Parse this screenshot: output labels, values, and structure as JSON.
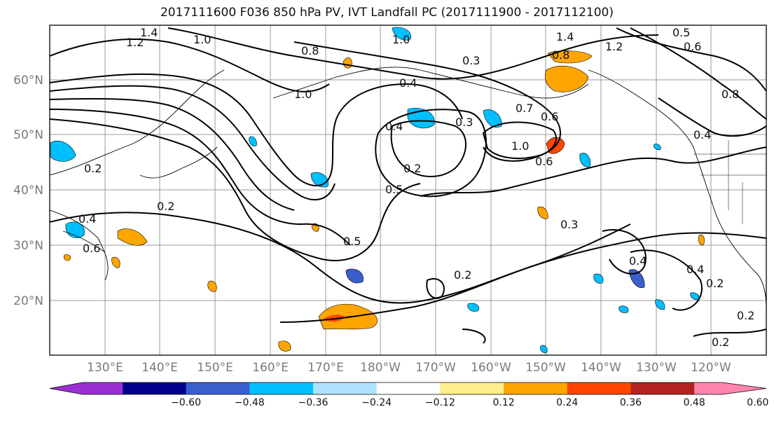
{
  "title": "2017111600 F036 850 hPa PV, IVT Landfall PC (2017111900 - 2017112100)",
  "latitudes": [
    "60°N",
    "50°N",
    "40°N",
    "30°N",
    "20°N"
  ],
  "longitudes": [
    "130°E",
    "140°E",
    "150°E",
    "160°E",
    "170°E",
    "180°W",
    "170°W",
    "160°W",
    "150°W",
    "140°W",
    "130°W",
    "120°W"
  ],
  "colorbar": {
    "ticks": [
      "−0.60",
      "−0.48",
      "−0.36",
      "−0.24",
      "−0.12",
      "0.12",
      "0.24",
      "0.36",
      "0.48",
      "0.60"
    ],
    "colors": [
      "#9b30d0",
      "#00008b",
      "#3a5fcd",
      "#00bfff",
      "#b0e2ff",
      "#ffffff",
      "#ffec8b",
      "#ffa500",
      "#ff4500",
      "#b22222",
      "#ff85b0"
    ]
  },
  "contour_labels": [
    "1.4",
    "1.2",
    "1.0",
    "0.8",
    "0.6",
    "0.5",
    "0.4",
    "0.3",
    "0.2",
    "0.7"
  ],
  "colors": {
    "grid": "#9a9a9a",
    "contour": "#000000",
    "axis_label": "#7a7a7a"
  }
}
